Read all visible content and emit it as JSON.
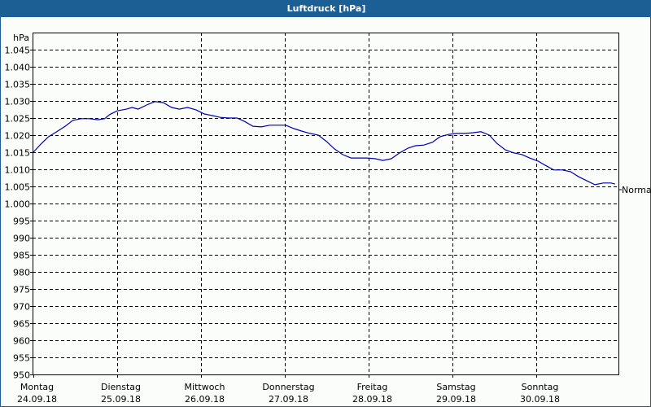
{
  "window": {
    "title": "Luftdruck [hPa]",
    "title_bar_color": "#1c5f95"
  },
  "chart_data": {
    "type": "line",
    "title": "Luftdruck [hPa]",
    "xlabel": "",
    "ylabel": "hPa",
    "ylim": [
      950,
      1050
    ],
    "grid": true,
    "y_ticks": [
      {
        "value": 950,
        "label": "950"
      },
      {
        "value": 955,
        "label": "955"
      },
      {
        "value": 960,
        "label": "960"
      },
      {
        "value": 965,
        "label": "965"
      },
      {
        "value": 970,
        "label": "970"
      },
      {
        "value": 975,
        "label": "975"
      },
      {
        "value": 980,
        "label": "980"
      },
      {
        "value": 985,
        "label": "985"
      },
      {
        "value": 990,
        "label": "990"
      },
      {
        "value": 995,
        "label": "995"
      },
      {
        "value": 1000,
        "label": "1.000"
      },
      {
        "value": 1005,
        "label": "1.005"
      },
      {
        "value": 1010,
        "label": "1.010"
      },
      {
        "value": 1015,
        "label": "1.015"
      },
      {
        "value": 1020,
        "label": "1.020"
      },
      {
        "value": 1025,
        "label": "1.025"
      },
      {
        "value": 1030,
        "label": "1.030"
      },
      {
        "value": 1035,
        "label": "1.035"
      },
      {
        "value": 1040,
        "label": "1.040"
      },
      {
        "value": 1045,
        "label": "1.045"
      }
    ],
    "x_ticks": [
      {
        "day": "Montag",
        "date": "24.09.18"
      },
      {
        "day": "Dienstag",
        "date": "25.09.18"
      },
      {
        "day": "Mittwoch",
        "date": "26.09.18"
      },
      {
        "day": "Donnerstag",
        "date": "27.09.18"
      },
      {
        "day": "Freitag",
        "date": "28.09.18"
      },
      {
        "day": "Samstag",
        "date": "29.09.18"
      },
      {
        "day": "Sonntag",
        "date": "30.09.18"
      }
    ],
    "series": [
      {
        "name": "Normal",
        "color": "#0000b0",
        "x_days": [
          0.0,
          0.09,
          0.18,
          0.28,
          0.38,
          0.47,
          0.57,
          0.67,
          0.77,
          0.85,
          0.91,
          1.0,
          1.11,
          1.18,
          1.25,
          1.35,
          1.45,
          1.55,
          1.65,
          1.74,
          1.84,
          1.94,
          2.04,
          2.14,
          2.23,
          2.33,
          2.43,
          2.52,
          2.62,
          2.72,
          2.82,
          2.91,
          3.01,
          3.11,
          3.2,
          3.3,
          3.4,
          3.5,
          3.59,
          3.69,
          3.79,
          3.88,
          3.98,
          4.08,
          4.17,
          4.27,
          4.37,
          4.47,
          4.56,
          4.66,
          4.76,
          4.85,
          4.95,
          5.05,
          5.15,
          5.24,
          5.34,
          5.44,
          5.53,
          5.63,
          5.73,
          5.83,
          5.92,
          6.02,
          6.12,
          6.21,
          6.31,
          6.41,
          6.5,
          6.6,
          6.7,
          6.8,
          6.89,
          6.94
        ],
        "values": [
          1015.0,
          1017.4,
          1019.5,
          1021.0,
          1022.6,
          1024.3,
          1024.8,
          1024.8,
          1024.5,
          1024.8,
          1026.0,
          1027.1,
          1027.6,
          1028.1,
          1027.6,
          1028.8,
          1029.8,
          1029.5,
          1028.1,
          1027.6,
          1028.1,
          1027.4,
          1026.2,
          1025.7,
          1025.2,
          1025.0,
          1025.0,
          1024.0,
          1022.6,
          1022.4,
          1022.9,
          1022.9,
          1022.9,
          1021.9,
          1021.2,
          1020.5,
          1020.0,
          1018.1,
          1016.0,
          1014.3,
          1013.3,
          1013.3,
          1013.3,
          1013.1,
          1012.6,
          1013.1,
          1014.8,
          1016.2,
          1016.9,
          1017.1,
          1017.9,
          1019.5,
          1020.2,
          1020.5,
          1020.5,
          1020.7,
          1021.0,
          1020.0,
          1017.6,
          1015.7,
          1014.8,
          1014.3,
          1013.3,
          1012.4,
          1011.0,
          1009.8,
          1009.8,
          1009.3,
          1007.9,
          1006.7,
          1005.5,
          1006.0,
          1006.0,
          1005.7
        ]
      }
    ],
    "series_label": "Normal",
    "legend_position": "right-end-of-line"
  }
}
